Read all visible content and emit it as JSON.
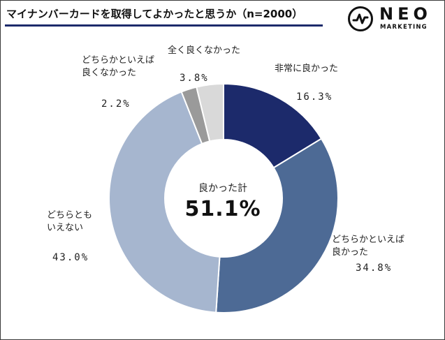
{
  "header": {
    "title": "マイナンバーカードを取得してよかったと思うか（n=2000）"
  },
  "logo": {
    "name": "NEO",
    "sub": "MARKETING",
    "icon": "neo-pulse-icon"
  },
  "colors": {
    "title_rule": "#1c2a6b",
    "slices": [
      "#1c2a6b",
      "#4d6a95",
      "#a6b6cf",
      "#9a9a9a",
      "#d9d9d9"
    ]
  },
  "chart_data": {
    "type": "pie",
    "donut": true,
    "title": "マイナンバーカードを取得してよかったと思うか（n=2000）",
    "categories": [
      "非常に良かった",
      "どちらかといえば良かった",
      "どちらともいえない",
      "どちらかといえば良くなかった",
      "全く良くなかった"
    ],
    "label_lines": [
      [
        "非常に良かった"
      ],
      [
        "どちらかといえば",
        "良かった"
      ],
      [
        "どちらとも",
        "いえない"
      ],
      [
        "どちらかといえば",
        "良くなかった"
      ],
      [
        "全く良くなかった"
      ]
    ],
    "values": [
      16.3,
      34.8,
      43.0,
      2.2,
      3.8
    ],
    "value_labels": [
      "16.3%",
      "34.8%",
      "43.0%",
      "2.2%",
      "3.8%"
    ],
    "center": {
      "caption": "良かった計",
      "value": "51.1%"
    }
  }
}
